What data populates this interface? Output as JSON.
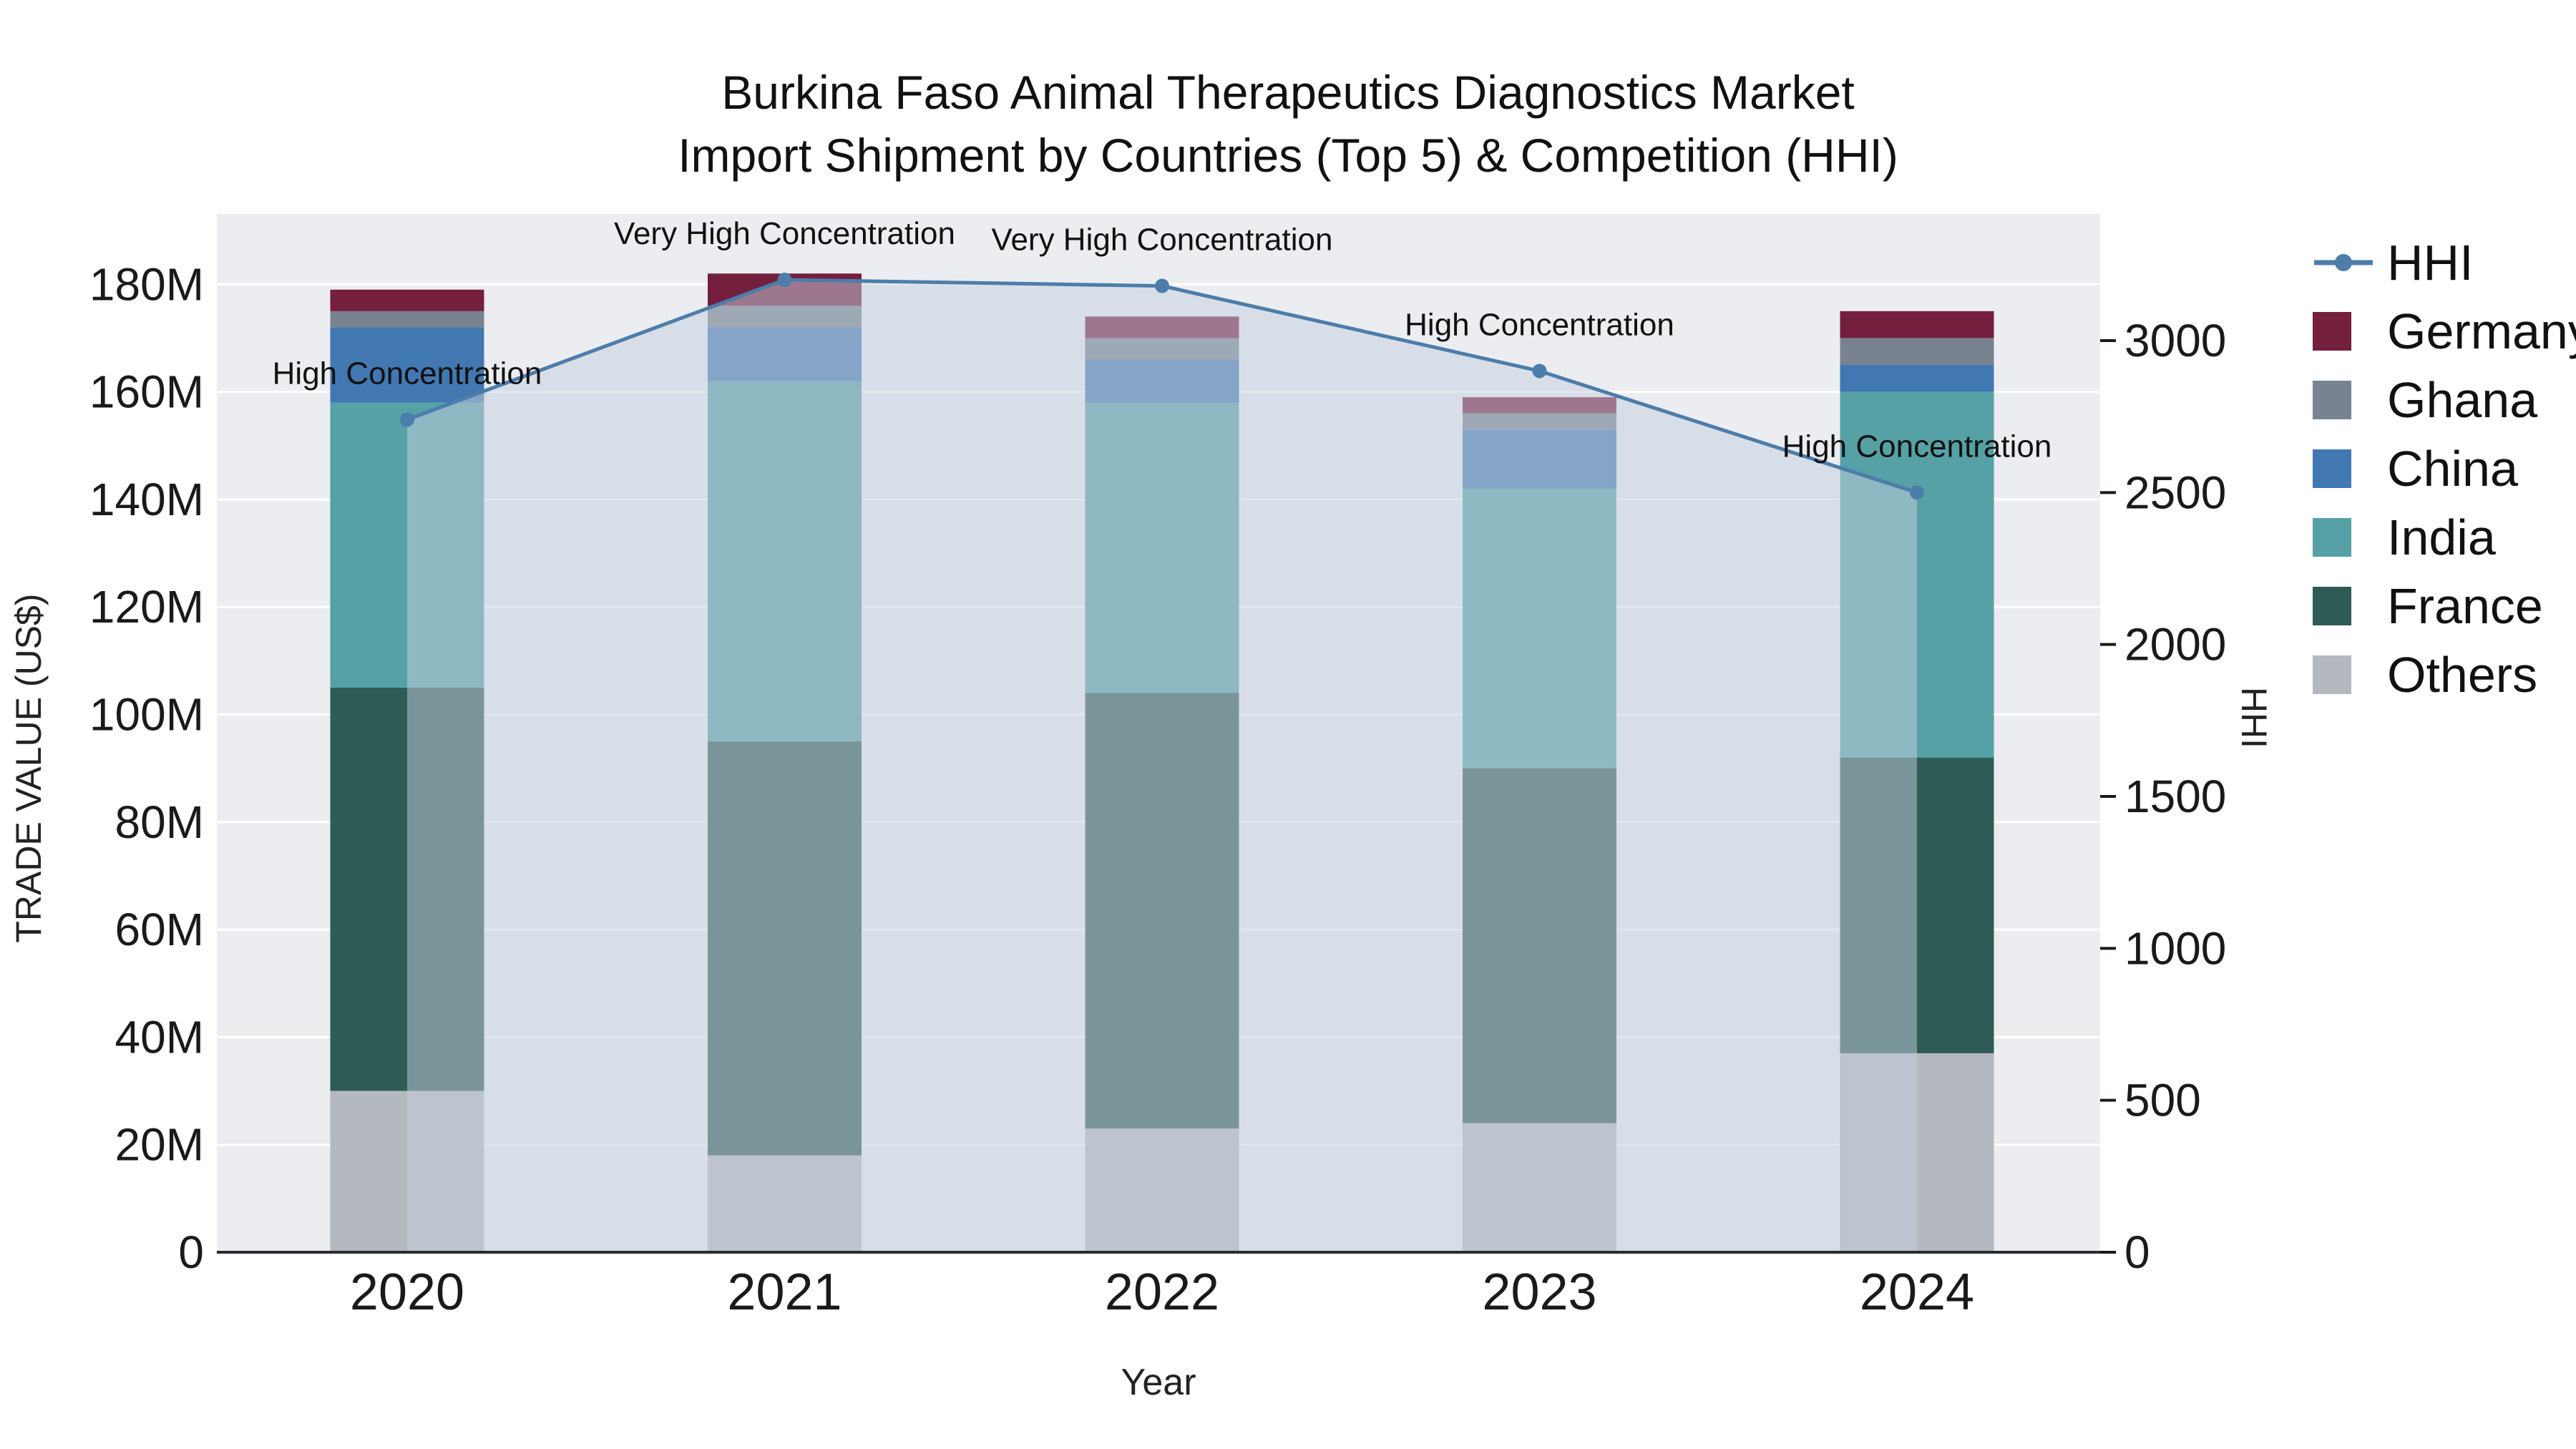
{
  "chart_data": {
    "type": "bar",
    "title_line1": "Burkina Faso Animal Therapeutics Diagnostics Market",
    "title_line2": "Import Shipment by Countries (Top 5) & Competition (HHI)",
    "xlabel": "Year",
    "ylabel_left": "TRADE VALUE (US$)",
    "ylabel_right": "HHI",
    "categories": [
      "2020",
      "2021",
      "2022",
      "2023",
      "2024"
    ],
    "bar_unit": "M US$",
    "bar_series": [
      {
        "name": "Others",
        "color": "#b4b9bf",
        "values": [
          30,
          18,
          23,
          24,
          37
        ]
      },
      {
        "name": "France",
        "color": "#2f5b55",
        "values": [
          75,
          77,
          81,
          66,
          55
        ]
      },
      {
        "name": "India",
        "color": "#56a1a6",
        "values": [
          53,
          67,
          54,
          52,
          68
        ]
      },
      {
        "name": "China",
        "color": "#4278b2",
        "values": [
          14,
          10,
          8,
          11,
          5
        ]
      },
      {
        "name": "Ghana",
        "color": "#78838f",
        "values": [
          3,
          4,
          4,
          3,
          5
        ]
      },
      {
        "name": "Germany",
        "color": "#741f3d",
        "values": [
          4,
          6,
          4,
          3,
          5
        ]
      }
    ],
    "line_series": {
      "name": "HHI",
      "color": "#4c7dab",
      "fill": "rgba(197,207,221,0.5)",
      "values": [
        2740,
        3200,
        3180,
        2900,
        2500
      ]
    },
    "annotations": [
      "High Concentration",
      "Very High Concentration",
      "Very High Concentration",
      "High Concentration",
      "High Concentration"
    ],
    "y_left": {
      "ticks": [
        "0",
        "20M",
        "40M",
        "60M",
        "80M",
        "100M",
        "120M",
        "140M",
        "160M",
        "180M"
      ],
      "tick_step_m": 20
    },
    "y_right": {
      "ticks": [
        "0",
        "500",
        "1000",
        "1500",
        "2000",
        "2500",
        "3000"
      ],
      "tick_step": 500
    },
    "legend": [
      "HHI",
      "Germany",
      "Ghana",
      "China",
      "India",
      "France",
      "Others"
    ],
    "colors": {
      "plot_background": "#ebedf0",
      "gridline": "#ffffff",
      "axis_line": "#2b2b2b",
      "text": "#1a1a1a"
    }
  }
}
